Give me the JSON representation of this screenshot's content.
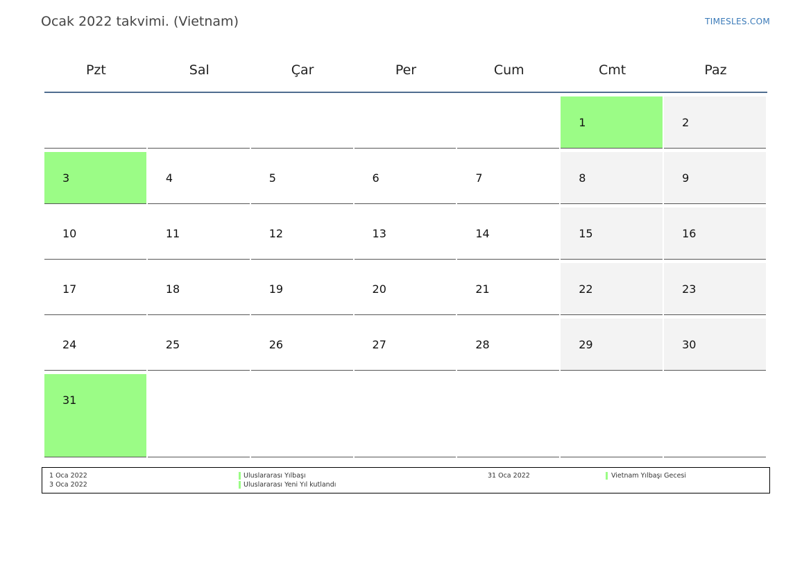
{
  "title": "Ocak 2022 takvimi. (Vietnam)",
  "site": "TIMESLES.COM",
  "colors": {
    "holiday": "#9bfc86",
    "weekend": "#f3f3f3",
    "header_rule": "#4f6d8f"
  },
  "weekdays": [
    "Pzt",
    "Sal",
    "Çar",
    "Per",
    "Cum",
    "Cmt",
    "Paz"
  ],
  "weeks": [
    [
      "",
      "",
      "",
      "",
      "",
      "1",
      "2"
    ],
    [
      "3",
      "4",
      "5",
      "6",
      "7",
      "8",
      "9"
    ],
    [
      "10",
      "11",
      "12",
      "13",
      "14",
      "15",
      "16"
    ],
    [
      "17",
      "18",
      "19",
      "20",
      "21",
      "22",
      "23"
    ],
    [
      "24",
      "25",
      "26",
      "27",
      "28",
      "29",
      "30"
    ],
    [
      "31",
      "",
      "",
      "",
      "",
      "",
      ""
    ]
  ],
  "holiday_days": [
    "1",
    "3",
    "31"
  ],
  "legend": [
    {
      "date": "1 Oca 2022",
      "name": "Uluslararası Yılbaşı"
    },
    {
      "date": "3 Oca 2022",
      "name": "Uluslararası Yeni Yıl kutlandı"
    },
    {
      "date": "31 Oca 2022",
      "name": "Vietnam Yılbaşı Gecesi"
    }
  ]
}
